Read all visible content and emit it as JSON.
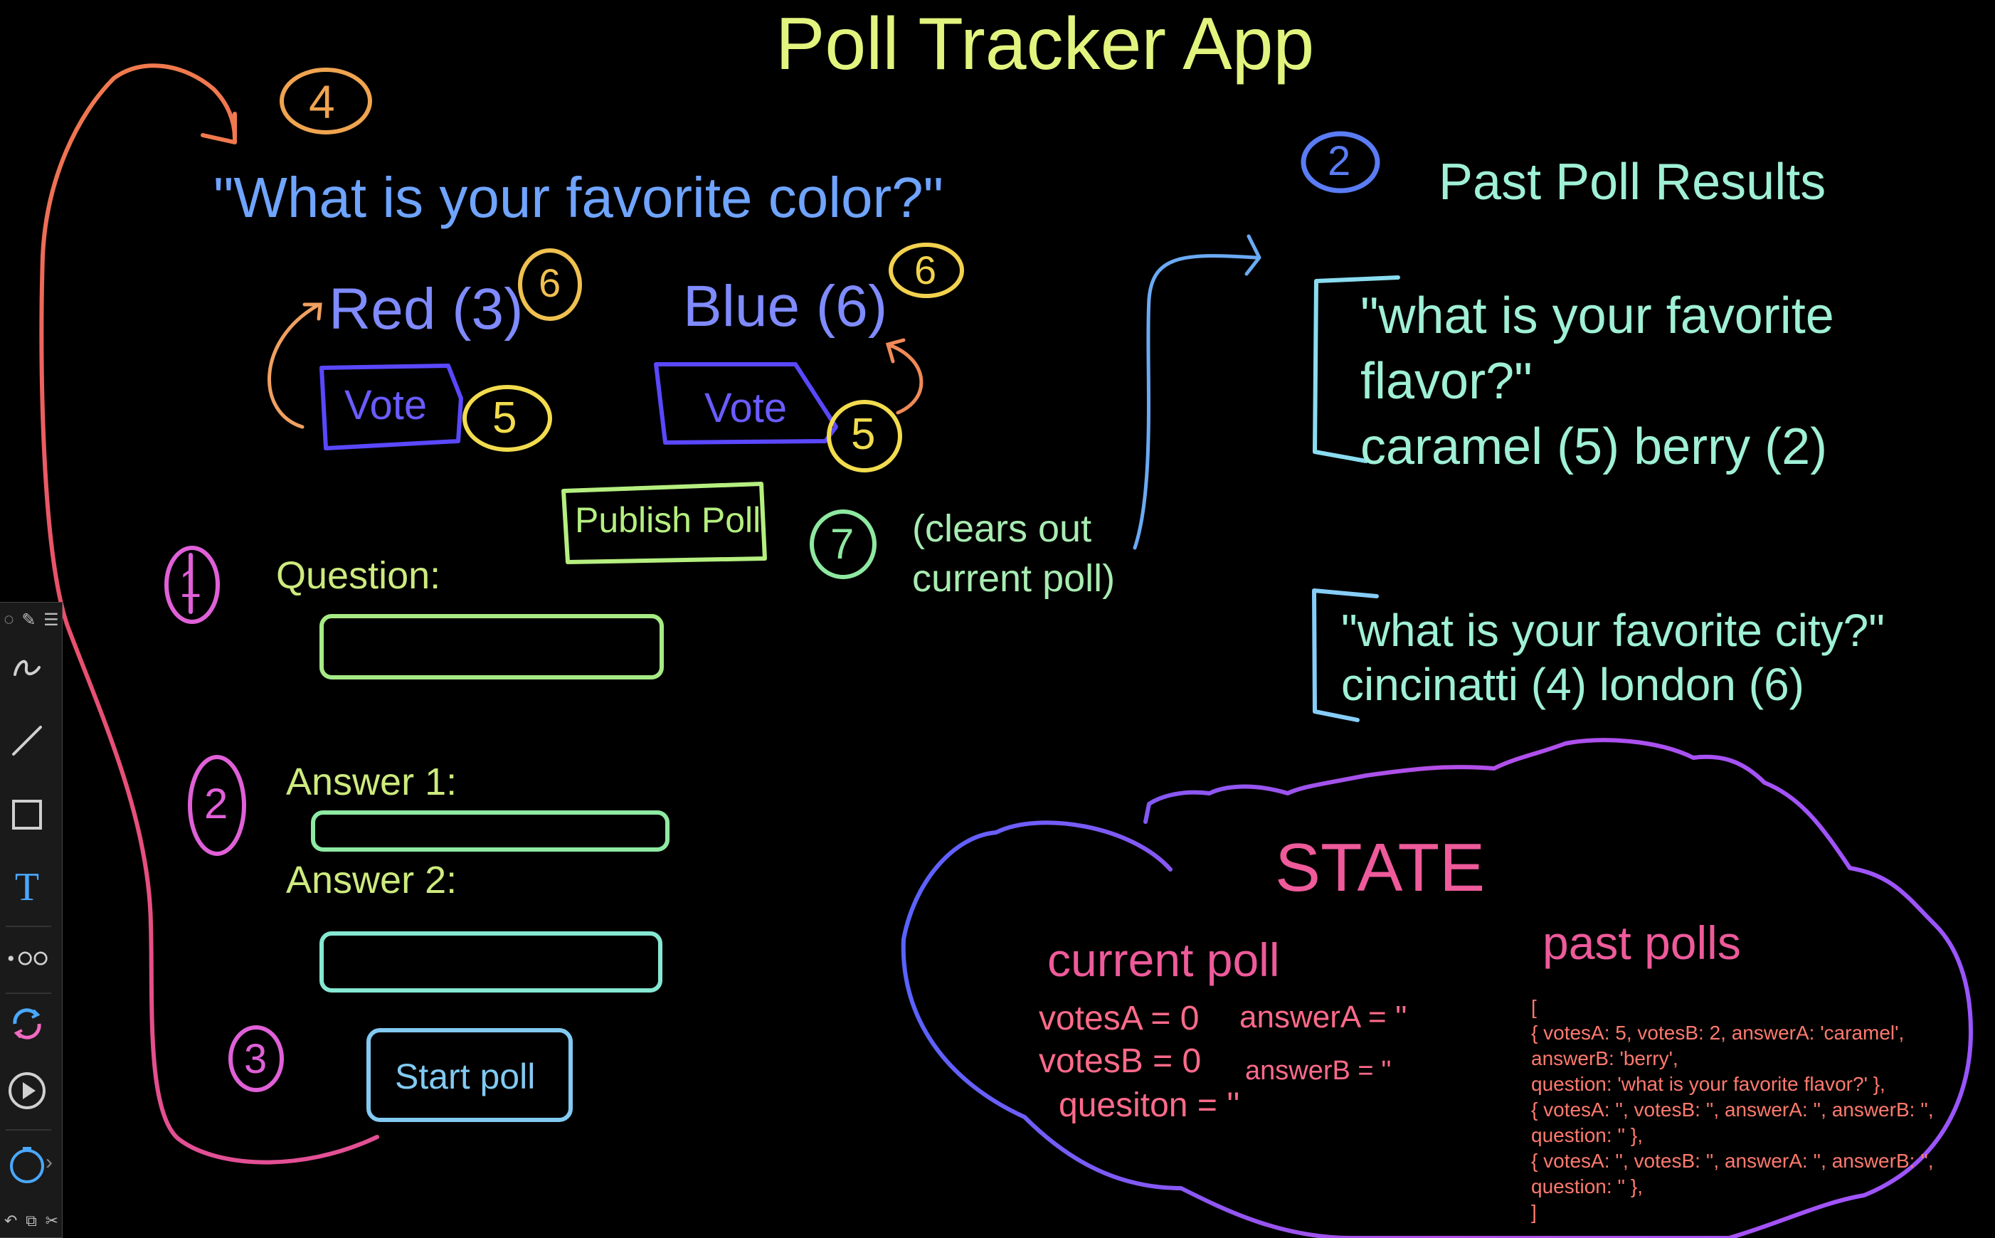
{
  "app_title": "Poll Tracker App",
  "current_poll": {
    "question": "\"What is your favorite color?\"",
    "answer_a": "Red (3)",
    "answer_b": "Blue (6)",
    "vote_label": "Vote",
    "publish_label": "Publish Poll",
    "publish_note_line1": "(clears out",
    "publish_note_line2": "current poll)"
  },
  "form": {
    "question_label": "Question:",
    "answer1_label": "Answer 1:",
    "answer2_label": "Answer 2:",
    "start_label": "Start poll"
  },
  "past_results": {
    "heading": "Past Poll Results",
    "polls": [
      {
        "line1": "\"what is your favorite",
        "line2": "flavor?\"",
        "line3": "caramel (5) berry (2)"
      },
      {
        "line1": "\"what is your favorite city?\"",
        "line2": "cincinatti (4) london (6)"
      }
    ]
  },
  "state": {
    "title": "STATE",
    "current_heading": "current poll",
    "votesA": "votesA = 0",
    "votesB": "votesB = 0",
    "question": "quesiton = ''",
    "answerA": "answerA = ''",
    "answerB": "answerB = ''",
    "past_heading": "past polls",
    "past_code": [
      "[",
      "{ votesA: 5, votesB: 2, answerA: 'caramel',",
      "answerB: 'berry',",
      "question: 'what is your favorite flavor?' },",
      "{ votesA: '', votesB: '', answerA: '', answerB: '',",
      "question: '' },",
      "{ votesA: '', votesB: '', answerA: '', answerB: '',",
      "question: '' },",
      "]"
    ]
  },
  "step_numbers": [
    "1",
    "2",
    "3",
    "4",
    "5",
    "5",
    "6",
    "6",
    "7",
    "2"
  ],
  "colors": {
    "background": "#000000",
    "title": "#e2f47e",
    "question": "#6fa4ff",
    "answers": "#7f8bff",
    "vote_box": "#5a48ff",
    "form_labels": "#cdeb7e",
    "state_pink": "#ee5a9a",
    "past_results": "#9ff0d6",
    "code": "#ff7a6e"
  },
  "toolbar_icons": [
    "pen-icon",
    "line-icon",
    "rectangle-icon",
    "text-icon",
    "connector-icon",
    "color-cycle-icon",
    "play-icon",
    "timer-icon"
  ]
}
